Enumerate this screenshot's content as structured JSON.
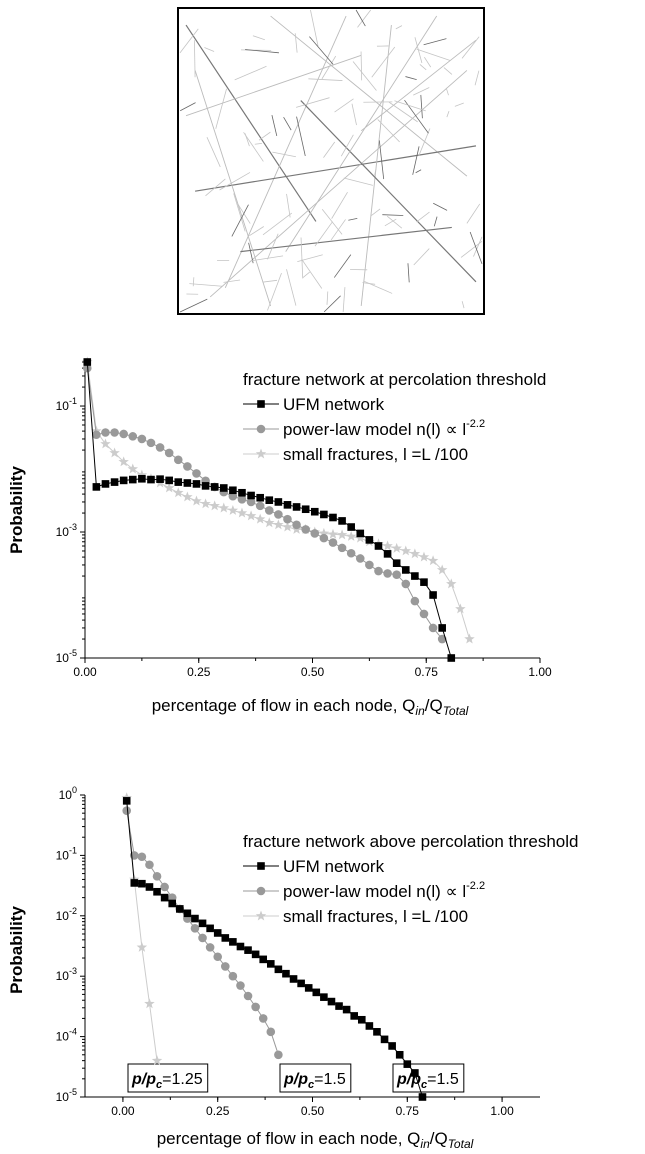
{
  "network_image": {
    "icon": "fracture-network-illustration"
  },
  "chart_data": [
    {
      "type": "line",
      "xlabel": "percentage of flow in each node, Q",
      "xlabel_sub1": "in",
      "xlabel_mid": "/Q",
      "xlabel_sub2": "Total",
      "ylabel": "Probability",
      "yscale": "log",
      "xlim": [
        0,
        1
      ],
      "ylim": [
        1e-05,
        0.5
      ],
      "x_ticks": [
        0,
        0.25,
        0.5,
        0.75,
        1.0
      ],
      "x_tick_labels": [
        "0.00",
        "0.25",
        "0.50",
        "0.75",
        "1.00"
      ],
      "y_ticks": [
        1e-05,
        0.001,
        0.1
      ],
      "y_tick_bases": [
        "10",
        "10",
        "10"
      ],
      "y_tick_exps": [
        "-5",
        "-3",
        "-1"
      ],
      "legend_title": "fracture network at percolation threshold",
      "legend_position": "top-right",
      "series": [
        {
          "name": "UFM network",
          "color": "#000000",
          "marker": "square",
          "x": [
            0.005,
            0.025,
            0.045,
            0.065,
            0.085,
            0.105,
            0.125,
            0.145,
            0.165,
            0.185,
            0.205,
            0.225,
            0.245,
            0.265,
            0.285,
            0.305,
            0.325,
            0.345,
            0.365,
            0.385,
            0.405,
            0.425,
            0.445,
            0.465,
            0.485,
            0.505,
            0.525,
            0.545,
            0.565,
            0.585,
            0.605,
            0.625,
            0.645,
            0.665,
            0.685,
            0.705,
            0.725,
            0.745,
            0.765,
            0.785,
            0.805
          ],
          "y": [
            0.5,
            0.0052,
            0.0058,
            0.0062,
            0.0066,
            0.0068,
            0.007,
            0.0068,
            0.0069,
            0.0066,
            0.0062,
            0.006,
            0.0058,
            0.0054,
            0.0052,
            0.005,
            0.0046,
            0.0042,
            0.0038,
            0.0035,
            0.0032,
            0.003,
            0.0027,
            0.0025,
            0.0023,
            0.0021,
            0.0019,
            0.0017,
            0.0015,
            0.0012,
            0.00095,
            0.00075,
            0.0006,
            0.00045,
            0.00032,
            0.00025,
            0.0002,
            0.00016,
            0.0001,
            3e-05,
            1e-05
          ]
        },
        {
          "name": "power-law model n(l) ∝ l",
          "name_exp": "-2.2",
          "color": "#999999",
          "marker": "circle",
          "x": [
            0.005,
            0.025,
            0.045,
            0.065,
            0.085,
            0.105,
            0.125,
            0.145,
            0.165,
            0.185,
            0.205,
            0.225,
            0.245,
            0.265,
            0.285,
            0.305,
            0.325,
            0.345,
            0.365,
            0.385,
            0.405,
            0.425,
            0.445,
            0.465,
            0.485,
            0.505,
            0.525,
            0.545,
            0.565,
            0.585,
            0.605,
            0.625,
            0.645,
            0.665,
            0.685,
            0.705,
            0.725,
            0.745,
            0.765,
            0.785
          ],
          "y": [
            0.4,
            0.035,
            0.038,
            0.038,
            0.036,
            0.033,
            0.03,
            0.026,
            0.022,
            0.018,
            0.014,
            0.011,
            0.0085,
            0.0065,
            0.0052,
            0.0043,
            0.0037,
            0.0033,
            0.003,
            0.0026,
            0.0022,
            0.0019,
            0.0016,
            0.0013,
            0.0011,
            0.00095,
            0.0008,
            0.00068,
            0.00056,
            0.00046,
            0.00038,
            0.0003,
            0.00024,
            0.00022,
            0.00021,
            0.00015,
            8e-05,
            5e-05,
            3e-05,
            2e-05
          ]
        },
        {
          "name": "small fractures, l =L /100",
          "color": "#cccccc",
          "marker": "star",
          "x": [
            0.005,
            0.025,
            0.045,
            0.065,
            0.085,
            0.105,
            0.125,
            0.145,
            0.165,
            0.185,
            0.205,
            0.225,
            0.245,
            0.265,
            0.285,
            0.305,
            0.325,
            0.345,
            0.365,
            0.385,
            0.405,
            0.425,
            0.445,
            0.465,
            0.485,
            0.505,
            0.525,
            0.545,
            0.565,
            0.585,
            0.605,
            0.625,
            0.645,
            0.665,
            0.685,
            0.705,
            0.725,
            0.745,
            0.765,
            0.785,
            0.805,
            0.825,
            0.845
          ],
          "y": [
            0.5,
            0.04,
            0.025,
            0.018,
            0.013,
            0.01,
            0.008,
            0.007,
            0.006,
            0.005,
            0.0042,
            0.0036,
            0.0031,
            0.0028,
            0.0026,
            0.0024,
            0.0022,
            0.002,
            0.0018,
            0.0016,
            0.0014,
            0.0013,
            0.0012,
            0.0011,
            0.0011,
            0.001,
            0.00095,
            0.00092,
            0.0009,
            0.00085,
            0.0008,
            0.0007,
            0.00065,
            0.0006,
            0.00055,
            0.0005,
            0.00045,
            0.0004,
            0.00035,
            0.00025,
            0.00015,
            6e-05,
            2e-05
          ]
        }
      ]
    },
    {
      "type": "line",
      "xlabel": "percentage of flow in each node, Q",
      "xlabel_sub1": "in",
      "xlabel_mid": "/Q",
      "xlabel_sub2": "Total",
      "ylabel": "Probability",
      "yscale": "log",
      "xlim": [
        -0.1,
        1.1
      ],
      "ylim": [
        1e-05,
        1.0
      ],
      "x_ticks": [
        0,
        0.25,
        0.5,
        0.75,
        1.0
      ],
      "x_tick_labels": [
        "0.00",
        "0.25",
        "0.50",
        "0.75",
        "1.00"
      ],
      "y_ticks": [
        1e-05,
        0.0001,
        0.001,
        0.01,
        0.1,
        1.0
      ],
      "y_tick_bases": [
        "10",
        "10",
        "10",
        "10",
        "10",
        "10"
      ],
      "y_tick_exps": [
        "-5",
        "-4",
        "-3",
        "-2",
        "-1",
        "0"
      ],
      "legend_title": "fracture network above percolation threshold",
      "legend_position": "top-right",
      "series": [
        {
          "name": "UFM network",
          "color": "#000000",
          "marker": "square",
          "x": [
            0.01,
            0.03,
            0.05,
            0.07,
            0.09,
            0.11,
            0.13,
            0.15,
            0.17,
            0.19,
            0.21,
            0.23,
            0.25,
            0.27,
            0.29,
            0.31,
            0.33,
            0.35,
            0.37,
            0.39,
            0.41,
            0.43,
            0.45,
            0.47,
            0.49,
            0.51,
            0.53,
            0.55,
            0.57,
            0.59,
            0.61,
            0.63,
            0.65,
            0.67,
            0.69,
            0.71,
            0.73,
            0.75,
            0.77,
            0.79
          ],
          "y": [
            0.8,
            0.035,
            0.034,
            0.03,
            0.025,
            0.02,
            0.016,
            0.013,
            0.011,
            0.009,
            0.0075,
            0.0062,
            0.0052,
            0.0043,
            0.0037,
            0.0031,
            0.0027,
            0.0023,
            0.0019,
            0.0016,
            0.0013,
            0.0011,
            0.0009,
            0.00076,
            0.00064,
            0.00054,
            0.00045,
            0.00038,
            0.00032,
            0.00028,
            0.00022,
            0.00019,
            0.00015,
            0.00012,
            9e-05,
            7e-05,
            5e-05,
            3.5e-05,
            2.5e-05,
            1e-05
          ]
        },
        {
          "name": "power-law model n(l) ∝ l",
          "name_exp": "-2.2",
          "color": "#999999",
          "marker": "circle",
          "x": [
            0.01,
            0.03,
            0.05,
            0.07,
            0.09,
            0.11,
            0.13,
            0.15,
            0.17,
            0.19,
            0.21,
            0.23,
            0.25,
            0.27,
            0.29,
            0.31,
            0.33,
            0.35,
            0.37,
            0.39,
            0.41
          ],
          "y": [
            0.55,
            0.1,
            0.095,
            0.07,
            0.045,
            0.03,
            0.02,
            0.013,
            0.009,
            0.0062,
            0.0043,
            0.003,
            0.0021,
            0.00145,
            0.001,
            0.0007,
            0.00047,
            0.00031,
            0.0002,
            0.00012,
            5e-05
          ]
        },
        {
          "name": "small fractures, l =L /100",
          "color": "#cccccc",
          "marker": "star",
          "x": [
            0.01,
            0.03,
            0.05,
            0.07,
            0.09
          ],
          "y": [
            0.9,
            0.04,
            0.003,
            0.00035,
            4e-05
          ]
        }
      ],
      "annotations": [
        {
          "label": "p/p",
          "sub": "c",
          "value": "=1.25"
        },
        {
          "label": "p/p",
          "sub": "c",
          "value": "=1.5"
        },
        {
          "label": "p/p",
          "sub": "c",
          "value": "=1.5"
        }
      ]
    }
  ]
}
